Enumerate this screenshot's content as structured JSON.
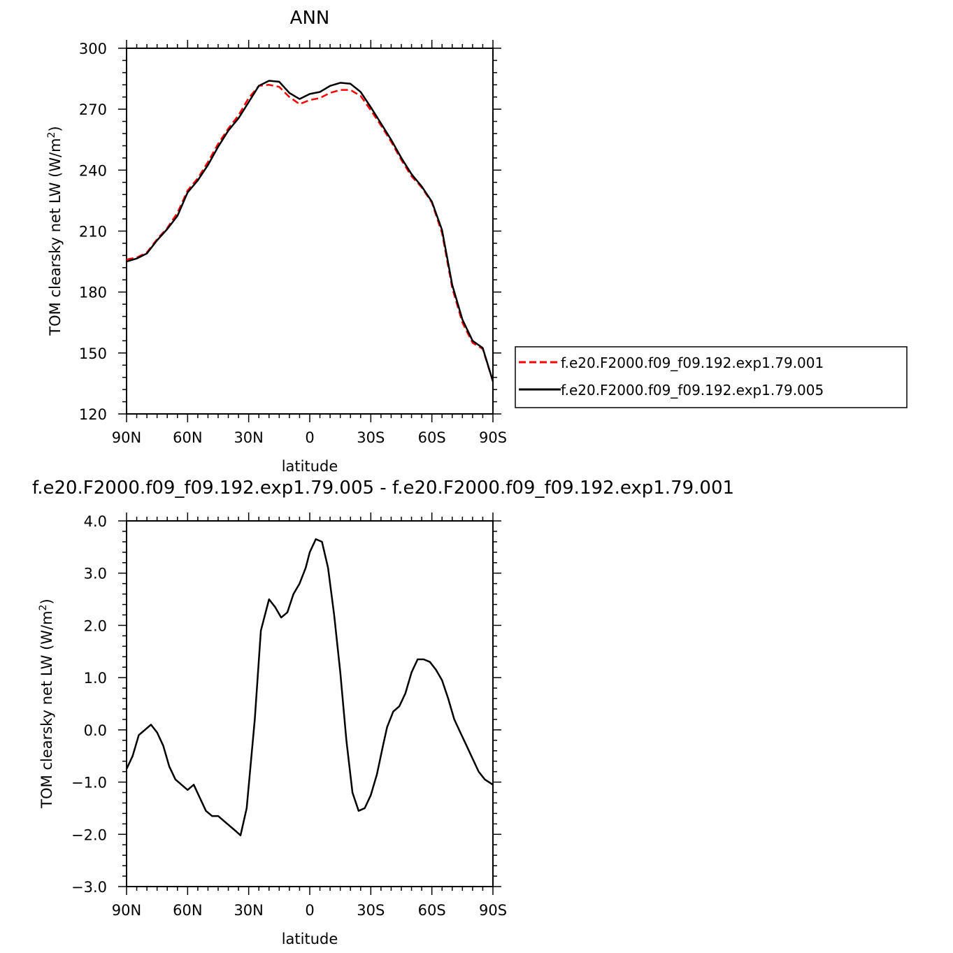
{
  "chart_data": [
    {
      "type": "line",
      "title": "ANN",
      "xlabel": "latitude",
      "ylabel": "TOM clearsky net LW (W/m²)",
      "ylabel_main": "TOM clearsky net LW (W/m",
      "ylabel_sup": "2",
      "ylabel_close": ")",
      "xlim": [
        90,
        -90
      ],
      "ylim": [
        120,
        300
      ],
      "x_ticks": [
        90,
        60,
        30,
        0,
        -30,
        -60,
        -90
      ],
      "x_tick_labels": [
        "90N",
        "60N",
        "30N",
        "0",
        "30S",
        "60S",
        "90S"
      ],
      "y_ticks": [
        120,
        150,
        180,
        210,
        240,
        270,
        300
      ],
      "y_tick_labels": [
        "120",
        "150",
        "180",
        "210",
        "240",
        "270",
        "300"
      ],
      "grid": false,
      "legend_position": "right",
      "x": [
        90,
        85,
        80,
        75,
        70,
        65,
        60,
        55,
        50,
        45,
        40,
        35,
        30,
        25,
        20,
        15,
        10,
        5,
        0,
        -5,
        -10,
        -15,
        -20,
        -25,
        -30,
        -35,
        -40,
        -45,
        -50,
        -55,
        -60,
        -65,
        -70,
        -75,
        -80,
        -85,
        -90
      ],
      "series": [
        {
          "name": "f.e20.F2000.f09_f09.192.exp1.79.001",
          "color": "#ff0000",
          "dash": "dashed",
          "values": [
            196,
            197,
            199.5,
            206,
            211.5,
            219,
            230,
            236,
            244,
            253,
            260.5,
            267,
            275.5,
            281.5,
            282,
            281,
            276,
            272.5,
            274.5,
            275.5,
            278,
            279.5,
            279.5,
            276.5,
            269.5,
            262,
            254,
            245,
            237,
            231.5,
            224,
            209,
            182,
            165,
            155,
            152,
            136
          ]
        },
        {
          "name": "f.e20.F2000.f09_f09.192.exp1.79.005",
          "color": "#000000",
          "dash": "solid",
          "values": [
            195,
            196.5,
            199,
            205.5,
            211,
            217.5,
            229,
            235,
            242.5,
            251.5,
            259.5,
            265.5,
            273.5,
            281.5,
            284,
            283.5,
            278,
            275,
            277.5,
            278.5,
            281.5,
            283,
            282.5,
            278.5,
            271,
            263,
            255,
            246,
            238,
            232,
            224.5,
            210.5,
            183.5,
            166.5,
            156,
            152.5,
            136
          ]
        }
      ]
    },
    {
      "type": "line",
      "title": "f.e20.F2000.f09_f09.192.exp1.79.005 - f.e20.F2000.f09_f09.192.exp1.79.001",
      "xlabel": "latitude",
      "ylabel": "TOM clearsky net LW (W/m²)",
      "ylabel_main": "TOM clearsky net LW (W/m",
      "ylabel_sup": "2",
      "ylabel_close": ")",
      "xlim": [
        90,
        -90
      ],
      "ylim": [
        -3.0,
        4.0
      ],
      "x_ticks": [
        90,
        60,
        30,
        0,
        -30,
        -60,
        -90
      ],
      "x_tick_labels": [
        "90N",
        "60N",
        "30N",
        "0",
        "30S",
        "60S",
        "90S"
      ],
      "y_ticks": [
        -3.0,
        -2.0,
        -1.0,
        0.0,
        1.0,
        2.0,
        3.0,
        4.0
      ],
      "y_tick_labels": [
        "−3.0",
        "−2.0",
        "−1.0",
        "0.0",
        "1.0",
        "2.0",
        "3.0",
        "4.0"
      ],
      "grid": false,
      "x": [
        90,
        87,
        84,
        81,
        78,
        75,
        72,
        69,
        66,
        63,
        60,
        57,
        54,
        51,
        48,
        45,
        42,
        39,
        36,
        34,
        31,
        27,
        24,
        20,
        17,
        14,
        11,
        8,
        5,
        2,
        0,
        -3,
        -6,
        -9,
        -12,
        -15,
        -18,
        -21,
        -24,
        -27,
        -30,
        -33,
        -36,
        -38,
        -41,
        -44,
        -47,
        -50,
        -53,
        -56,
        -59,
        -62,
        -65,
        -68,
        -71,
        -74,
        -77,
        -80,
        -83,
        -86,
        -88,
        -90
      ],
      "series": [
        {
          "name": "",
          "color": "#000000",
          "dash": "solid",
          "values": [
            -0.75,
            -0.5,
            -0.1,
            0.0,
            0.1,
            -0.05,
            -0.3,
            -0.7,
            -0.95,
            -1.05,
            -1.15,
            -1.05,
            -1.3,
            -1.55,
            -1.65,
            -1.65,
            -1.75,
            -1.85,
            -1.95,
            -2.02,
            -1.5,
            0.2,
            1.9,
            2.5,
            2.35,
            2.15,
            2.25,
            2.6,
            2.8,
            3.1,
            3.4,
            3.65,
            3.6,
            3.1,
            2.2,
            1.1,
            -0.2,
            -1.2,
            -1.55,
            -1.5,
            -1.25,
            -0.85,
            -0.3,
            0.05,
            0.35,
            0.45,
            0.7,
            1.1,
            1.35,
            1.35,
            1.3,
            1.15,
            0.95,
            0.6,
            0.2,
            -0.05,
            -0.3,
            -0.55,
            -0.8,
            -0.95,
            -1.0,
            -1.05
          ]
        }
      ]
    }
  ]
}
